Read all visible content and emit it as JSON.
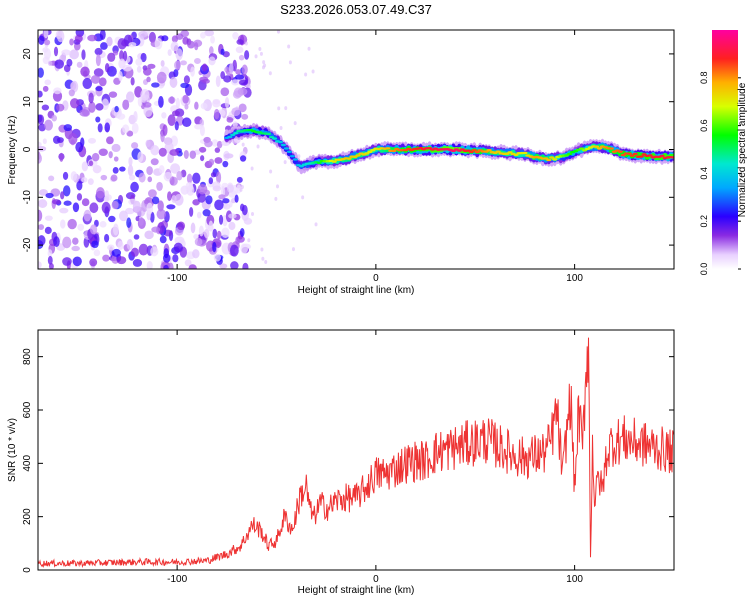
{
  "figure": {
    "title": "S233.2026.053.07.49.C37"
  },
  "chart_data": [
    {
      "type": "heatmap",
      "name": "spectrogram",
      "xlabel": "Height of straight line (km)",
      "ylabel": "Frequency (Hz)",
      "xlim": [
        -170,
        150
      ],
      "ylim": [
        -25,
        25
      ],
      "xticks": [
        -100,
        0,
        100
      ],
      "yticks": [
        -20,
        -10,
        0,
        10,
        20
      ],
      "colorbar": {
        "label": "Normalized spectral amplitude",
        "range": [
          0,
          1
        ],
        "ticks": [
          0.0,
          0.2,
          0.4,
          0.6,
          0.8
        ],
        "tick_labels": [
          "0.0",
          "0.2",
          "0.4",
          "0.6",
          "0.8"
        ]
      },
      "ridge": {
        "x": [
          -75,
          -70,
          -62,
          -55,
          -48,
          -42,
          -38,
          -33,
          -28,
          -22,
          -15,
          -8,
          -3,
          0,
          8,
          15,
          25,
          40,
          60,
          75,
          80,
          88,
          95,
          100,
          108,
          115,
          125,
          140,
          150
        ],
        "y": [
          2.5,
          3.5,
          4.0,
          3.5,
          1.5,
          -1.5,
          -3.5,
          -3.0,
          -2.5,
          -2.5,
          -2.0,
          -1.0,
          -0.5,
          0.0,
          0.0,
          0.0,
          0.0,
          0.0,
          -0.5,
          -1.0,
          -1.5,
          -2.0,
          -1.5,
          -0.5,
          0.5,
          0.5,
          -1.0,
          -1.5,
          -1.5
        ],
        "amplitude": [
          0.35,
          0.45,
          0.55,
          0.5,
          0.4,
          0.35,
          0.4,
          0.45,
          0.55,
          0.7,
          0.75,
          0.75,
          0.7,
          0.7,
          0.8,
          0.85,
          0.9,
          0.95,
          0.75,
          0.7,
          0.8,
          0.75,
          0.6,
          0.55,
          0.7,
          0.8,
          0.85,
          0.9,
          0.9
        ]
      },
      "noise_region_x": [
        -170,
        -72
      ]
    },
    {
      "type": "line",
      "name": "snr",
      "xlabel": "Height of straight line (km)",
      "ylabel": "SNR (10 * v/v)",
      "xlim": [
        -170,
        150
      ],
      "ylim": [
        0,
        900
      ],
      "xticks": [
        -100,
        0,
        100
      ],
      "yticks": [
        0,
        200,
        400,
        600,
        800
      ],
      "color": "#ee3333",
      "series": [
        {
          "name": "SNR",
          "x": [
            -170,
            -150,
            -120,
            -100,
            -85,
            -75,
            -68,
            -62,
            -58,
            -54,
            -50,
            -46,
            -42,
            -38,
            -35,
            -33,
            -31,
            -28,
            -24,
            -20,
            -15,
            -10,
            -5,
            0,
            5,
            10,
            15,
            20,
            25,
            30,
            35,
            40,
            45,
            50,
            55,
            60,
            65,
            70,
            75,
            80,
            85,
            88,
            91,
            94,
            96,
            98,
            100,
            102,
            104,
            106,
            107,
            108,
            109,
            110,
            112,
            114,
            116,
            118,
            120,
            125,
            130,
            135,
            140,
            145,
            150
          ],
          "y": [
            25,
            25,
            30,
            30,
            35,
            60,
            90,
            170,
            150,
            90,
            110,
            200,
            150,
            280,
            310,
            220,
            200,
            250,
            230,
            260,
            270,
            270,
            310,
            360,
            360,
            380,
            400,
            410,
            410,
            440,
            450,
            460,
            470,
            480,
            490,
            470,
            450,
            430,
            420,
            430,
            440,
            480,
            600,
            350,
            520,
            650,
            300,
            600,
            450,
            800,
            860,
            40,
            500,
            250,
            350,
            300,
            430,
            470,
            480,
            490,
            480,
            470,
            460,
            450,
            440
          ]
        }
      ]
    }
  ]
}
